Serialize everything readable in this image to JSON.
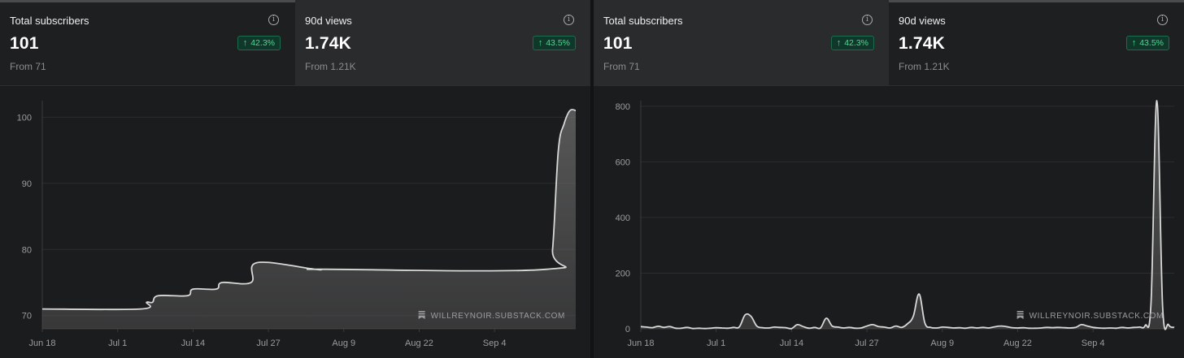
{
  "panels": [
    {
      "stats": [
        {
          "title": "Total subscribers",
          "value": "101",
          "change": "42.3%",
          "from": "From 71"
        },
        {
          "title": "90d views",
          "value": "1.74K",
          "change": "43.5%",
          "from": "From 1.21K"
        }
      ],
      "watermark": "WILLREYNOIR.SUBSTACK.COM"
    },
    {
      "stats": [
        {
          "title": "Total subscribers",
          "value": "101",
          "change": "42.3%",
          "from": "From 71"
        },
        {
          "title": "90d views",
          "value": "1.74K",
          "change": "43.5%",
          "from": "From 1.21K"
        }
      ],
      "watermark": "WILLREYNOIR.SUBSTACK.COM"
    }
  ],
  "colors": {
    "accent_green": "#4fd692",
    "line": "#d8d8d8"
  },
  "chart_data": [
    {
      "type": "area",
      "ylim": [
        68,
        102.5
      ],
      "yticks": [
        70,
        80,
        90,
        100
      ],
      "xticks": [
        "Jun 18",
        "Jul 1",
        "Jul 14",
        "Jul 27",
        "Aug 9",
        "Aug 22",
        "Sep 4"
      ],
      "x": [
        0,
        17,
        18,
        19,
        20,
        25,
        26,
        30,
        31,
        36,
        37,
        47,
        48,
        49,
        87,
        88,
        89,
        90,
        91,
        92
      ],
      "values": [
        71,
        71,
        72,
        72,
        73,
        73,
        74,
        74,
        75,
        75,
        78,
        77,
        77,
        77,
        77,
        80,
        95,
        99,
        101,
        101
      ],
      "grid": true
    },
    {
      "type": "area",
      "ylim": [
        0,
        820
      ],
      "yticks": [
        0,
        200,
        400,
        600,
        800
      ],
      "xticks": [
        "Jun 18",
        "Jul 1",
        "Jul 14",
        "Jul 27",
        "Aug 9",
        "Aug 22",
        "Sep 4"
      ],
      "x": [
        0,
        1,
        2,
        3,
        4,
        5,
        6,
        7,
        8,
        9,
        10,
        11,
        12,
        13,
        14,
        15,
        16,
        17,
        18,
        19,
        20,
        21,
        22,
        23,
        24,
        25,
        26,
        27,
        28,
        29,
        30,
        31,
        32,
        33,
        34,
        35,
        36,
        37,
        38,
        39,
        40,
        41,
        42,
        43,
        44,
        45,
        46,
        47,
        48,
        49,
        50,
        51,
        52,
        53,
        54,
        55,
        56,
        57,
        58,
        59,
        60,
        61,
        62,
        63,
        64,
        65,
        66,
        67,
        68,
        69,
        70,
        71,
        72,
        73,
        74,
        75,
        76,
        77,
        78,
        79,
        80,
        81,
        82,
        83,
        84,
        85,
        86,
        87,
        88,
        89,
        90,
        91,
        92
      ],
      "values": [
        8,
        6,
        4,
        9,
        5,
        8,
        2,
        2,
        5,
        1,
        2,
        1,
        2,
        4,
        3,
        2,
        5,
        7,
        50,
        45,
        10,
        4,
        3,
        6,
        5,
        4,
        1,
        15,
        8,
        2,
        5,
        3,
        38,
        10,
        6,
        3,
        5,
        2,
        3,
        10,
        15,
        8,
        6,
        3,
        10,
        5,
        18,
        45,
        125,
        20,
        5,
        3,
        6,
        5,
        3,
        4,
        2,
        5,
        3,
        5,
        3,
        7,
        10,
        8,
        4,
        3,
        4,
        2,
        2,
        3,
        5,
        4,
        5,
        4,
        3,
        5,
        15,
        10,
        5,
        3,
        2,
        3,
        2,
        5,
        3,
        5,
        6,
        12,
        95,
        820,
        80,
        15,
        5
      ],
      "grid": true
    }
  ]
}
